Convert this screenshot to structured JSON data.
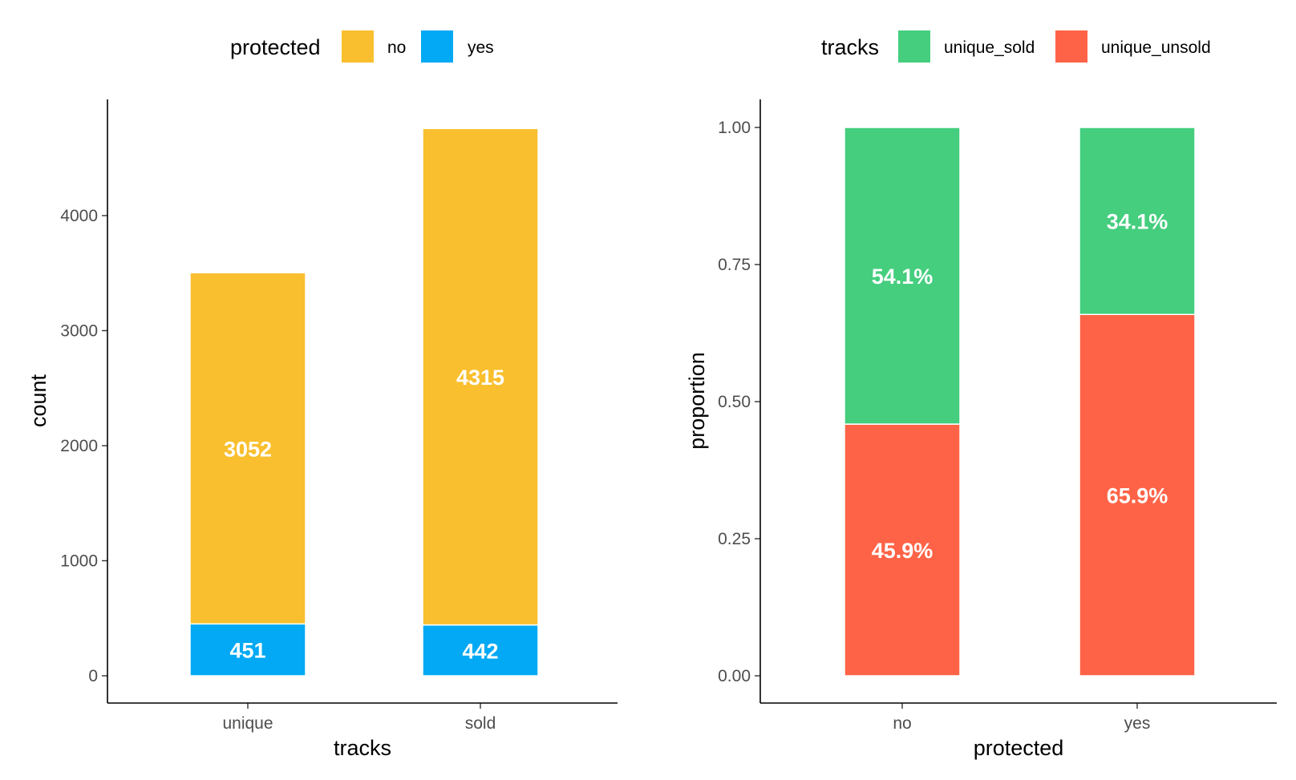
{
  "chart_data": [
    {
      "type": "bar",
      "stacked": true,
      "xlabel": "tracks",
      "ylabel": "count",
      "categories": [
        "unique",
        "sold"
      ],
      "ylim": [
        0,
        4766
      ],
      "yticks": [
        "0",
        "1000",
        "2000",
        "3000",
        "4000"
      ],
      "legend": {
        "title": "protected",
        "position": "top"
      },
      "series": [
        {
          "name": "yes",
          "color": "#03A9F4",
          "values": [
            451,
            442
          ],
          "labels": [
            "451",
            "442"
          ]
        },
        {
          "name": "no",
          "color": "#F9BF2E",
          "values": [
            3052,
            4315
          ],
          "labels": [
            "3052",
            "4315"
          ]
        }
      ]
    },
    {
      "type": "bar",
      "stacked": true,
      "xlabel": "protected",
      "ylabel": "proportion",
      "categories": [
        "no",
        "yes"
      ],
      "ylim": [
        0,
        1
      ],
      "yticks": [
        "0.00",
        "0.25",
        "0.50",
        "0.75",
        "1.00"
      ],
      "legend": {
        "title": "tracks",
        "position": "top"
      },
      "series": [
        {
          "name": "unique_unsold",
          "color": "#FF6347",
          "values": [
            0.459,
            0.659
          ],
          "labels": [
            "45.9%",
            "65.9%"
          ]
        },
        {
          "name": "unique_sold",
          "color": "#44CE7E",
          "values": [
            0.541,
            0.341
          ],
          "labels": [
            "54.1%",
            "34.1%"
          ]
        }
      ],
      "legend_order": [
        "unique_sold",
        "unique_unsold"
      ]
    }
  ]
}
